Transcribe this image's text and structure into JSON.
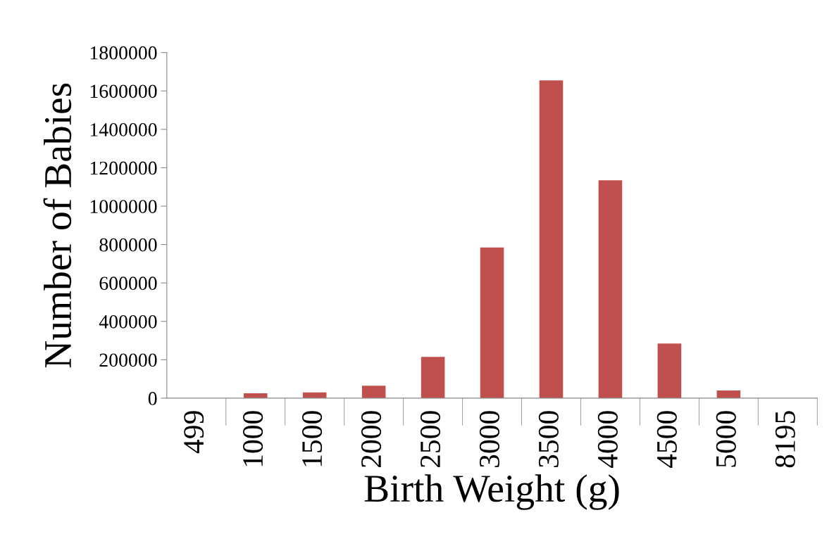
{
  "chart_data": {
    "type": "bar",
    "xlabel": "Birth Weight (g)",
    "ylabel": "Number of Babies",
    "categories": [
      "499",
      "1000",
      "1500",
      "2000",
      "2500",
      "3000",
      "3500",
      "4000",
      "4500",
      "5000",
      "8195"
    ],
    "values": [
      0,
      25000,
      30000,
      65000,
      215000,
      785000,
      1655000,
      1135000,
      285000,
      40000,
      0
    ],
    "color": "#c0504d",
    "ylim": [
      0,
      1800000
    ],
    "yticks": [
      0,
      200000,
      400000,
      600000,
      800000,
      1000000,
      1200000,
      1400000,
      1600000,
      1800000
    ],
    "grid": false,
    "legend": false
  }
}
